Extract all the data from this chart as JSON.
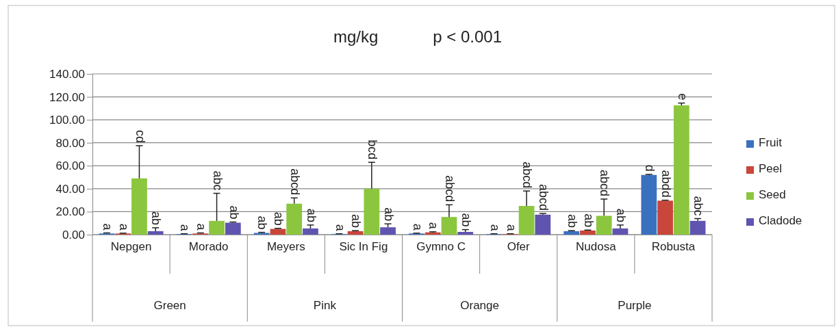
{
  "chart_data": {
    "type": "bar",
    "title": "mg/kg",
    "subtitle": "p < 0.001",
    "categories": [
      "Nepgen",
      "Morado",
      "Meyers",
      "Sic In Fig",
      "Gymno C",
      "Ofer",
      "Nudosa",
      "Robusta"
    ],
    "annotations": [
      "Green",
      "Pink",
      "Orange",
      "Purple"
    ],
    "series": [
      {
        "name": "Fruit",
        "color": "#3a70c0",
        "values": [
          1,
          0.5,
          1.5,
          0.5,
          1,
          0.5,
          3,
          52
        ],
        "errors": [
          [
            1,
            1.5
          ],
          [
            0.5,
            0.8
          ],
          [
            1.5,
            2
          ],
          [
            0.5,
            0.8
          ],
          [
            1,
            1.3
          ],
          [
            0.5,
            0.8
          ],
          [
            3,
            3.5
          ],
          [
            52,
            52.5
          ]
        ],
        "value_labels": [
          "a",
          "a",
          "ab",
          "a",
          "a",
          "a",
          "ab",
          "d"
        ]
      },
      {
        "name": "Peel",
        "color": "#c8463a",
        "values": [
          1,
          1,
          5,
          3,
          2,
          0.5,
          3.6,
          29.6
        ],
        "errors": [
          [
            1,
            1.3
          ],
          [
            1,
            1.5
          ],
          [
            5,
            5.5
          ],
          [
            3,
            3.5
          ],
          [
            2,
            2.5
          ],
          [
            0.5,
            0.8
          ],
          [
            3.6,
            4
          ],
          [
            29.6,
            30
          ]
        ],
        "value_labels": [
          "a",
          "a",
          "ab",
          "ab",
          "a",
          "a",
          "ab",
          "abdd"
        ]
      },
      {
        "name": "Seed",
        "color": "#8cc63f",
        "values": [
          49,
          12,
          27,
          40,
          15.4,
          25,
          16.4,
          112.6
        ],
        "errors": [
          [
            49,
            77.5
          ],
          [
            12,
            36
          ],
          [
            27,
            32
          ],
          [
            40,
            63
          ],
          [
            15.4,
            26
          ],
          [
            25,
            38
          ],
          [
            16.4,
            31
          ],
          [
            112.6,
            114.6
          ]
        ],
        "value_labels": [
          "cd",
          "abc",
          "abcd",
          "bcd",
          "abcd",
          "abcd",
          "abcd",
          "e"
        ]
      },
      {
        "name": "Cladode",
        "color": "#5f55b0",
        "values": [
          3,
          10.4,
          5.4,
          6.4,
          2.4,
          17.4,
          5.4,
          12
        ],
        "errors": [
          [
            3,
            6
          ],
          [
            10.4,
            11
          ],
          [
            5.4,
            8.4
          ],
          [
            6.4,
            9.4
          ],
          [
            2.4,
            4.4
          ],
          [
            17.4,
            18.4
          ],
          [
            5.4,
            8.4
          ],
          [
            12,
            14
          ]
        ],
        "value_labels": [
          "ab",
          "ab",
          "ab",
          "ab",
          "ab",
          "abcd",
          "ab",
          "abc"
        ]
      }
    ],
    "ylim": [
      0,
      140
    ],
    "yticks": [
      {
        "value": 0,
        "label": "0.00"
      },
      {
        "value": 20,
        "label": "20.00"
      },
      {
        "value": 40,
        "label": "40.00"
      },
      {
        "value": 60,
        "label": "60.00"
      },
      {
        "value": 80,
        "label": "80.00"
      },
      {
        "value": 100,
        "label": "100.00"
      },
      {
        "value": 120,
        "label": "120.00"
      },
      {
        "value": 140,
        "label": "140.00"
      }
    ],
    "grid": "y",
    "legend": "right"
  }
}
